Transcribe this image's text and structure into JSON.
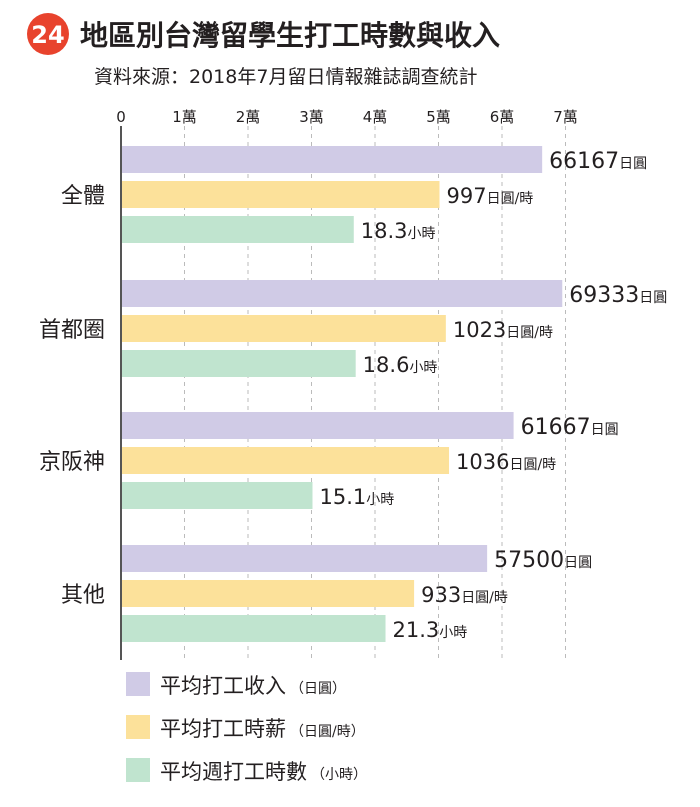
{
  "header": {
    "badge_number": "24",
    "title": "地區別台灣留學生打工時數與收入",
    "source": "資料來源：2018年7月留日情報雜誌調查統計"
  },
  "colors": {
    "badge": "#e8432d",
    "income": "#d0cbe6",
    "wage": "#fce19a",
    "hours": "#c0e4cf",
    "axis": "#555555",
    "grid": "#bbbbbb",
    "text": "#231f20"
  },
  "chart_data": {
    "type": "bar",
    "orientation": "horizontal",
    "title": "地區別台灣留學生打工時數與收入",
    "x_axis": {
      "ticks": [
        0,
        10000,
        20000,
        30000,
        40000,
        50000,
        60000,
        70000
      ],
      "tick_labels": [
        "0",
        "1萬",
        "2萬",
        "3萬",
        "4萬",
        "5萬",
        "6萬",
        "7萬"
      ],
      "range": [
        0,
        70000
      ],
      "gridlines": "dashed"
    },
    "categories": [
      "全體",
      "首都圈",
      "京阪神",
      "其他"
    ],
    "series": [
      {
        "key": "income",
        "name": "平均打工收入",
        "unit_label": "日圓",
        "legend_unit": "（日圓）",
        "values": [
          66167,
          69333,
          61667,
          57500
        ],
        "bar_values": [
          66167,
          69333,
          61667,
          57500
        ]
      },
      {
        "key": "wage",
        "name": "平均打工時薪",
        "unit_label": "日圓/時",
        "legend_unit": "（日圓/時）",
        "values": [
          997,
          1023,
          1036,
          933
        ],
        "bar_values": [
          50000,
          51000,
          51500,
          46000
        ]
      },
      {
        "key": "hours",
        "name": "平均週打工時數",
        "unit_label": "小時",
        "legend_unit": "（小時）",
        "values": [
          18.3,
          18.6,
          15.1,
          21.3
        ],
        "bar_values": [
          36500,
          36800,
          30000,
          41500
        ]
      }
    ],
    "legend_position": "bottom-left"
  }
}
